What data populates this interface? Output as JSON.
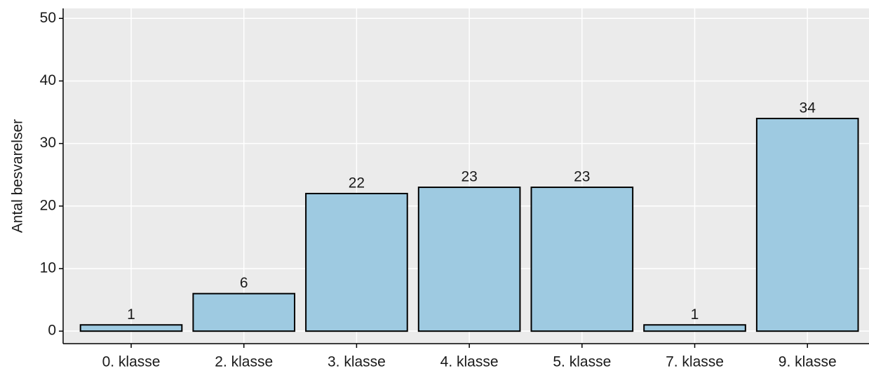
{
  "chart_data": {
    "type": "bar",
    "y_label": "Antal besvarelser",
    "categories": [
      "0. klasse",
      "2. klasse",
      "3. klasse",
      "4. klasse",
      "5. klasse",
      "7. klasse",
      "9. klasse"
    ],
    "values": [
      1,
      6,
      22,
      23,
      23,
      1,
      34
    ],
    "color": "#9ecae1",
    "ylim": [
      -2,
      51.6
    ],
    "yticks": [
      0,
      10,
      20,
      30,
      40,
      50
    ],
    "grid": true
  }
}
